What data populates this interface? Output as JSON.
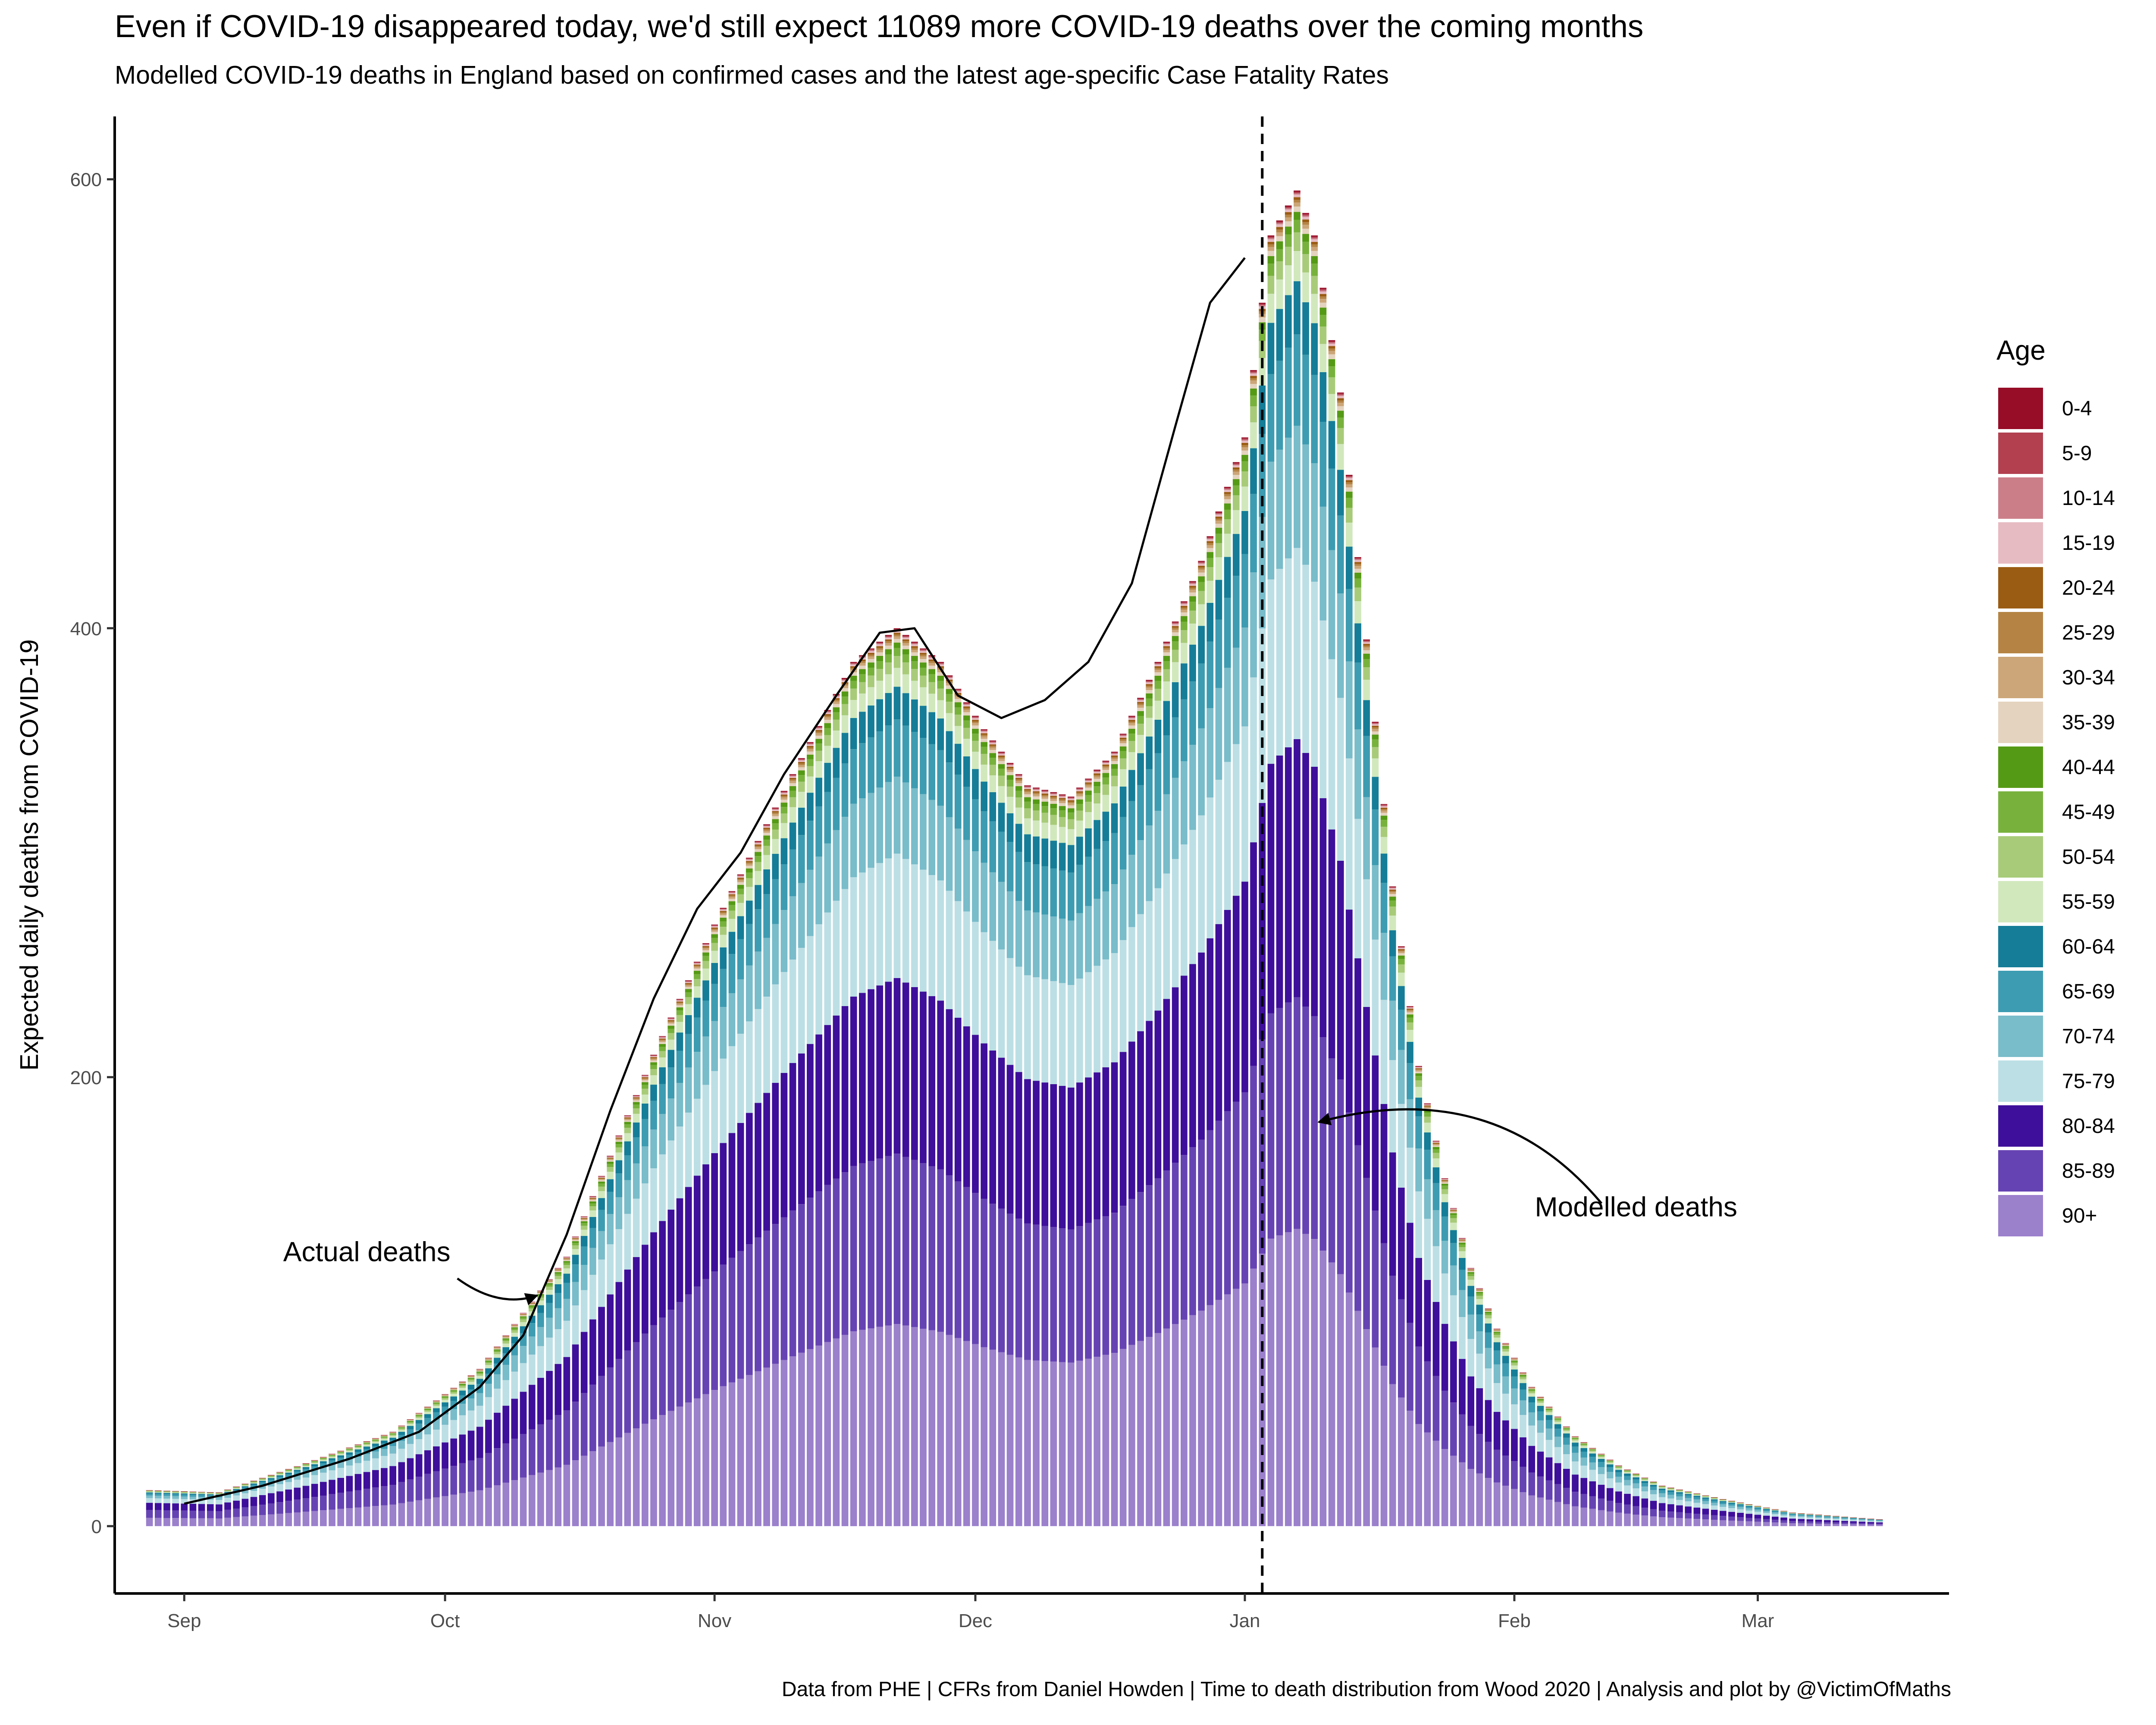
{
  "title": "Even if COVID-19 disappeared today, we'd still expect 11089 more COVID-19 deaths over the coming months",
  "subtitle": "Modelled COVID-19 deaths in England based on confirmed cases and the latest age-specific Case Fatality Rates",
  "caption": "Data from PHE | CFRs from Daniel Howden | Time to death distribution from Wood 2020 | Analysis and plot by @VictimOfMaths",
  "legend": {
    "title": "Age",
    "items": [
      {
        "label": "0-4",
        "color": "#970C26"
      },
      {
        "label": "5-9",
        "color": "#B2404F"
      },
      {
        "label": "10-14",
        "color": "#CB7E88"
      },
      {
        "label": "15-19",
        "color": "#E7BBC2"
      },
      {
        "label": "20-24",
        "color": "#9A5C13"
      },
      {
        "label": "25-29",
        "color": "#B58444"
      },
      {
        "label": "30-34",
        "color": "#CCA678"
      },
      {
        "label": "35-39",
        "color": "#E4D3BE"
      },
      {
        "label": "40-44",
        "color": "#559A15"
      },
      {
        "label": "45-49",
        "color": "#78B23D"
      },
      {
        "label": "50-54",
        "color": "#A8CB79"
      },
      {
        "label": "55-59",
        "color": "#D1E8BD"
      },
      {
        "label": "60-64",
        "color": "#157D97"
      },
      {
        "label": "65-69",
        "color": "#3D9CB1"
      },
      {
        "label": "70-74",
        "color": "#79BCCA"
      },
      {
        "label": "75-79",
        "color": "#BCDFE5"
      },
      {
        "label": "80-84",
        "color": "#3E0F9A"
      },
      {
        "label": "85-89",
        "color": "#6643B3"
      },
      {
        "label": "90+",
        "color": "#9B80CC"
      }
    ]
  },
  "chart_data": {
    "type": "area",
    "title": "Even if COVID-19 disappeared today, we'd still expect 11089 more COVID-19 deaths over the coming months",
    "subtitle": "Modelled COVID-19 deaths in England based on confirmed cases and the latest age-specific Case Fatality Rates",
    "ylabel": "Expected daily deaths from COVID-19",
    "xlabel": "",
    "ylim": [
      -30,
      628
    ],
    "xlim": [
      "2020-08-24",
      "2021-03-23"
    ],
    "yticks": [
      0,
      200,
      400,
      600
    ],
    "xticks": [
      {
        "date": "2020-09-01",
        "label": "Sep"
      },
      {
        "date": "2020-10-01",
        "label": "Oct"
      },
      {
        "date": "2020-11-01",
        "label": "Nov"
      },
      {
        "date": "2020-12-01",
        "label": "Dec"
      },
      {
        "date": "2021-01-01",
        "label": "Jan"
      },
      {
        "date": "2021-02-01",
        "label": "Feb"
      },
      {
        "date": "2021-03-01",
        "label": "Mar"
      }
    ],
    "grid": false,
    "legend_position": "right",
    "bar_range": [
      "2020-08-28",
      "2021-03-15"
    ],
    "today_line": "2021-01-03",
    "modelled_total_anchors": {
      "dates": [
        "2020-08-28",
        "2020-09-05",
        "2020-09-15",
        "2020-09-25",
        "2020-10-05",
        "2020-10-15",
        "2020-10-25",
        "2020-11-01",
        "2020-11-10",
        "2020-11-17",
        "2020-11-22",
        "2020-11-27",
        "2020-12-02",
        "2020-12-07",
        "2020-12-12",
        "2020-12-17",
        "2020-12-22",
        "2020-12-27",
        "2021-01-01",
        "2021-01-04",
        "2021-01-07",
        "2021-01-09",
        "2021-01-12",
        "2021-01-15",
        "2021-01-18",
        "2021-01-21",
        "2021-01-24",
        "2021-01-27",
        "2021-01-30",
        "2021-02-03",
        "2021-02-08",
        "2021-02-13",
        "2021-02-18",
        "2021-02-25",
        "2021-03-05",
        "2021-03-15"
      ],
      "values": [
        16,
        15,
        28,
        42,
        70,
        120,
        210,
        268,
        335,
        385,
        400,
        385,
        355,
        330,
        325,
        345,
        385,
        430,
        485,
        575,
        595,
        575,
        505,
        395,
        285,
        205,
        155,
        115,
        88,
        62,
        40,
        27,
        18,
        12,
        6,
        3
      ]
    },
    "age_group_shares": {
      "groups": [
        "0-4",
        "5-9",
        "10-14",
        "15-19",
        "20-24",
        "25-29",
        "30-34",
        "35-39",
        "40-44",
        "45-49",
        "50-54",
        "55-59",
        "60-64",
        "65-69",
        "70-74",
        "75-79",
        "80-84",
        "85-89",
        "90+"
      ],
      "early": [
        0.001,
        0.001,
        0.001,
        0.002,
        0.002,
        0.002,
        0.003,
        0.004,
        0.006,
        0.008,
        0.012,
        0.018,
        0.03,
        0.055,
        0.075,
        0.13,
        0.2,
        0.22,
        0.23
      ],
      "late": [
        0.001,
        0.001,
        0.001,
        0.002,
        0.002,
        0.002,
        0.003,
        0.004,
        0.006,
        0.01,
        0.015,
        0.025,
        0.045,
        0.075,
        0.1,
        0.15,
        0.19,
        0.15,
        0.219
      ]
    },
    "actual_deaths": {
      "dates": [
        "2020-09-01",
        "2020-09-10",
        "2020-09-20",
        "2020-09-28",
        "2020-10-05",
        "2020-10-10",
        "2020-10-15",
        "2020-10-20",
        "2020-10-25",
        "2020-10-30",
        "2020-11-04",
        "2020-11-09",
        "2020-11-15",
        "2020-11-20",
        "2020-11-24",
        "2020-11-29",
        "2020-12-04",
        "2020-12-09",
        "2020-12-14",
        "2020-12-19",
        "2020-12-24",
        "2020-12-28",
        "2021-01-01"
      ],
      "values": [
        10,
        18,
        30,
        42,
        62,
        85,
        130,
        185,
        235,
        275,
        300,
        335,
        370,
        398,
        400,
        370,
        360,
        368,
        385,
        420,
        490,
        545,
        565
      ]
    },
    "annotations": [
      {
        "text": "Actual deaths",
        "date": "2020-09-22",
        "value": 118,
        "arrow_to_date": "2020-10-12",
        "arrow_to_value": 102
      },
      {
        "text": "Modelled deaths",
        "date": "2021-02-15",
        "value": 138,
        "arrow_to_date": "2021-01-09",
        "arrow_to_value": 180
      }
    ]
  }
}
